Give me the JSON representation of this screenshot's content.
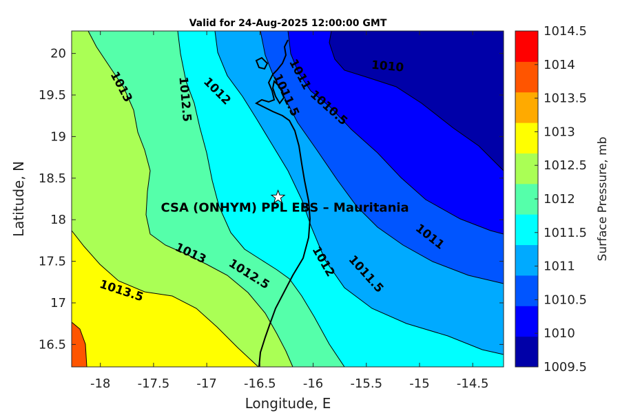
{
  "title": "Valid for 24-Aug-2025 12:00:00 GMT",
  "x_axis": {
    "label": "Longitude, E",
    "range": [
      -18.27,
      -14.21
    ],
    "ticks": [
      "-18",
      "-17.5",
      "-17",
      "-16.5",
      "-16",
      "-15.5",
      "-15",
      "-14.5"
    ],
    "tick_values": [
      -18,
      -17.5,
      -17,
      -16.5,
      -16,
      -15.5,
      -15,
      -14.5
    ]
  },
  "y_axis": {
    "label": "Latitude, N",
    "range": [
      16.23,
      20.27
    ],
    "ticks": [
      "16.5",
      "17",
      "17.5",
      "18",
      "18.5",
      "19",
      "19.5",
      "20"
    ],
    "tick_values": [
      16.5,
      17,
      17.5,
      18,
      18.5,
      19,
      19.5,
      20
    ]
  },
  "colorbar": {
    "label": "Surface Pressure, mb",
    "levels": [
      "1009.5",
      "1010",
      "1010.5",
      "1011",
      "1011.5",
      "1012",
      "1012.5",
      "1013",
      "1013.5",
      "1014",
      "1014.5"
    ],
    "colors": [
      "#0000a8",
      "#0000ff",
      "#0055ff",
      "#00aaff",
      "#00ffff",
      "#55ffaa",
      "#aaff55",
      "#ffff00",
      "#ffaa00",
      "#ff5500",
      "#ff0000"
    ]
  },
  "site": {
    "label": "CSA (ONHYM) PPL EBS  – Mauritania",
    "lon": -16.33,
    "lat": 18.27
  },
  "contour_labels": [
    {
      "text": "1013",
      "lon": -17.8,
      "lat": 19.6,
      "angle": 62
    },
    {
      "text": "1012.5",
      "lon": -17.2,
      "lat": 19.45,
      "angle": 85
    },
    {
      "text": "1012",
      "lon": -16.9,
      "lat": 19.55,
      "angle": 45
    },
    {
      "text": "1011.5",
      "lon": -16.25,
      "lat": 19.5,
      "angle": 65
    },
    {
      "text": "1011",
      "lon": -16.12,
      "lat": 19.75,
      "angle": 62
    },
    {
      "text": "1010.5",
      "lon": -15.85,
      "lat": 19.35,
      "angle": 42
    },
    {
      "text": "1010",
      "lon": -15.3,
      "lat": 19.85,
      "angle": 5
    },
    {
      "text": "1011",
      "lon": -14.9,
      "lat": 17.8,
      "angle": 38
    },
    {
      "text": "1011.5",
      "lon": -15.5,
      "lat": 17.35,
      "angle": 48
    },
    {
      "text": "1012",
      "lon": -15.9,
      "lat": 17.5,
      "angle": 60
    },
    {
      "text": "1012.5",
      "lon": -16.6,
      "lat": 17.35,
      "angle": 32
    },
    {
      "text": "1013",
      "lon": -17.15,
      "lat": 17.6,
      "angle": 25
    },
    {
      "text": "1013.5",
      "lon": -17.8,
      "lat": 17.15,
      "angle": 18
    }
  ]
}
